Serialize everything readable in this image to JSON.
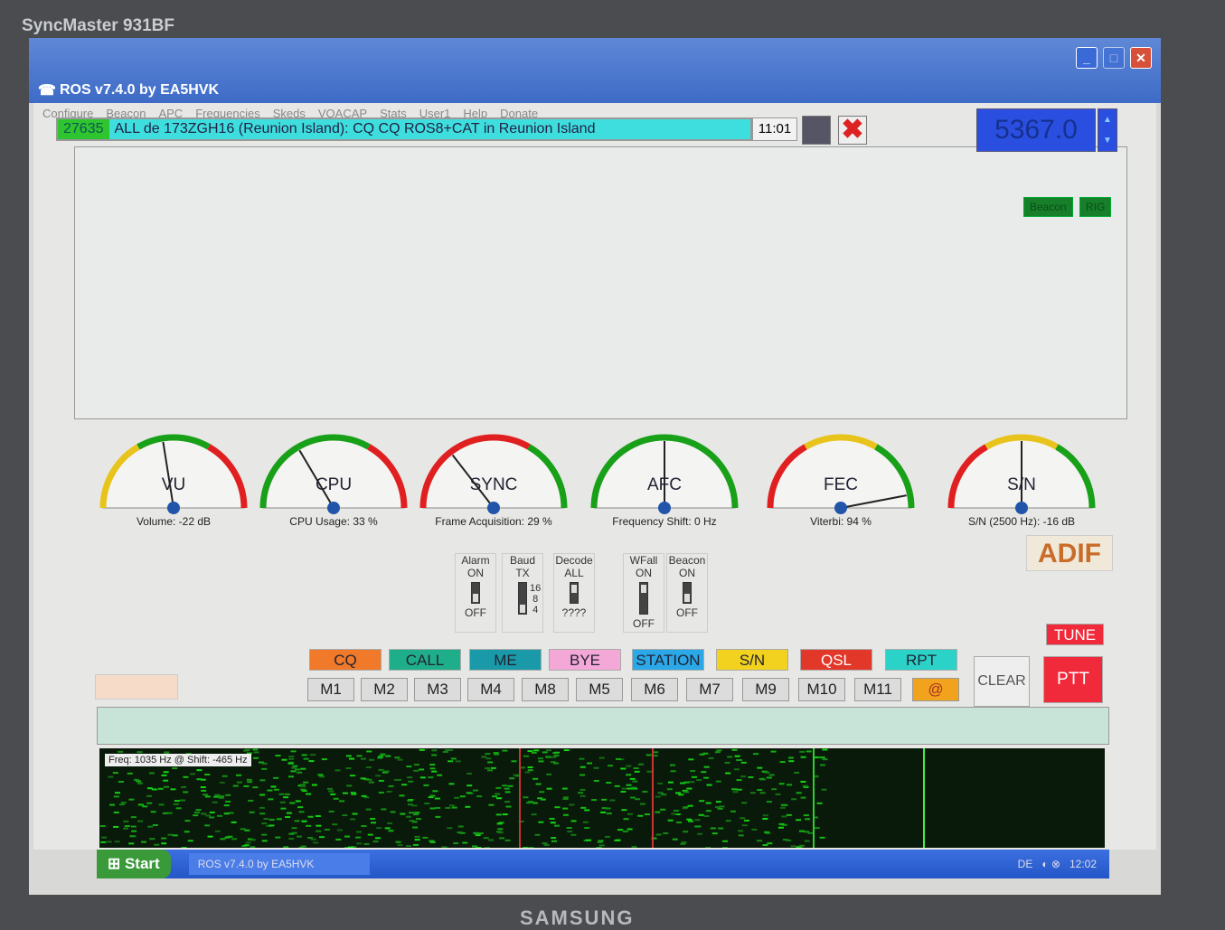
{
  "monitor": {
    "model": "SyncMaster 931BF",
    "brand": "SAMSUNG"
  },
  "window": {
    "title": "ROS v7.4.0 by EA5HVK"
  },
  "menu": [
    "Configure",
    "Beacon",
    "APC",
    "Frequencies",
    "Skeds",
    "VOACAP",
    "Stats",
    "User1",
    "Help",
    "Donate"
  ],
  "rx": {
    "id": "27635",
    "text": "ALL de 173ZGH16 (Reunion Island): CQ CQ ROS8+CAT in Reunion Island",
    "time": "11:01"
  },
  "frequency": "5367.0",
  "status_buttons": [
    "Beacon",
    "RIG"
  ],
  "gauges": [
    {
      "name": "VU",
      "label": "Volume: -22 dB",
      "value": 0.45,
      "zones": [
        "#e8c31c",
        "#18a018",
        "#e02020"
      ]
    },
    {
      "name": "CPU",
      "label": "CPU Usage: 33 %",
      "value": 0.33,
      "zones": [
        "#18a018",
        "#18a018",
        "#e02020"
      ]
    },
    {
      "name": "SYNC",
      "label": "Frame Acquisition: 29 %",
      "value": 0.29,
      "zones": [
        "#e02020",
        "#e02020",
        "#18a018"
      ]
    },
    {
      "name": "AFC",
      "label": "Frequency Shift: 0 Hz",
      "value": 0.5,
      "zones": [
        "#18a018",
        "#18a018",
        "#18a018"
      ]
    },
    {
      "name": "FEC",
      "label": "Viterbi: 94 %",
      "value": 0.94,
      "zones": [
        "#e02020",
        "#e8c31c",
        "#18a018"
      ]
    },
    {
      "name": "S/N",
      "label": "S/N (2500 Hz): -16 dB",
      "value": 0.5,
      "zones": [
        "#e02020",
        "#e8c31c",
        "#18a018"
      ]
    }
  ],
  "switches": [
    {
      "title": "Alarm",
      "top": "ON",
      "bottom": "OFF",
      "state": "off"
    },
    {
      "title": "Baud",
      "top": "TX",
      "bottom": "",
      "levels": [
        "16",
        "8",
        "4"
      ],
      "state": "4"
    },
    {
      "title": "Decode",
      "top": "ALL",
      "bottom": "????",
      "state": "all"
    },
    {
      "title": "WFall",
      "top": "ON",
      "bottom": "OFF",
      "state": "on"
    },
    {
      "title": "Beacon",
      "top": "ON",
      "bottom": "OFF",
      "state": "off"
    }
  ],
  "adif": "ADIF",
  "macros": [
    {
      "label": "CQ",
      "color": "#f07a2a"
    },
    {
      "label": "CALL",
      "color": "#1fae8a"
    },
    {
      "label": "ME",
      "color": "#1a9aa8"
    },
    {
      "label": "BYE",
      "color": "#f4a8d8"
    },
    {
      "label": "STATION",
      "color": "#2aa8e8"
    },
    {
      "label": "S/N",
      "color": "#f2d21e"
    },
    {
      "label": "QSL",
      "color": "#e2382a"
    },
    {
      "label": "RPT",
      "color": "#2ad2c8"
    }
  ],
  "memories": [
    "M1",
    "M2",
    "M3",
    "M4",
    "M8",
    "M5",
    "M6",
    "M7",
    "M9",
    "M10",
    "M11",
    "@"
  ],
  "clear": "CLEAR",
  "tune": "TUNE",
  "ptt": "PTT",
  "waterfall": {
    "readout": "Freq: 1035 Hz @ Shift: -465 Hz"
  },
  "taskbar": {
    "start": "Start",
    "task": "ROS v7.4.0 by EA5HVK",
    "lang": "DE",
    "time": "12:02"
  }
}
